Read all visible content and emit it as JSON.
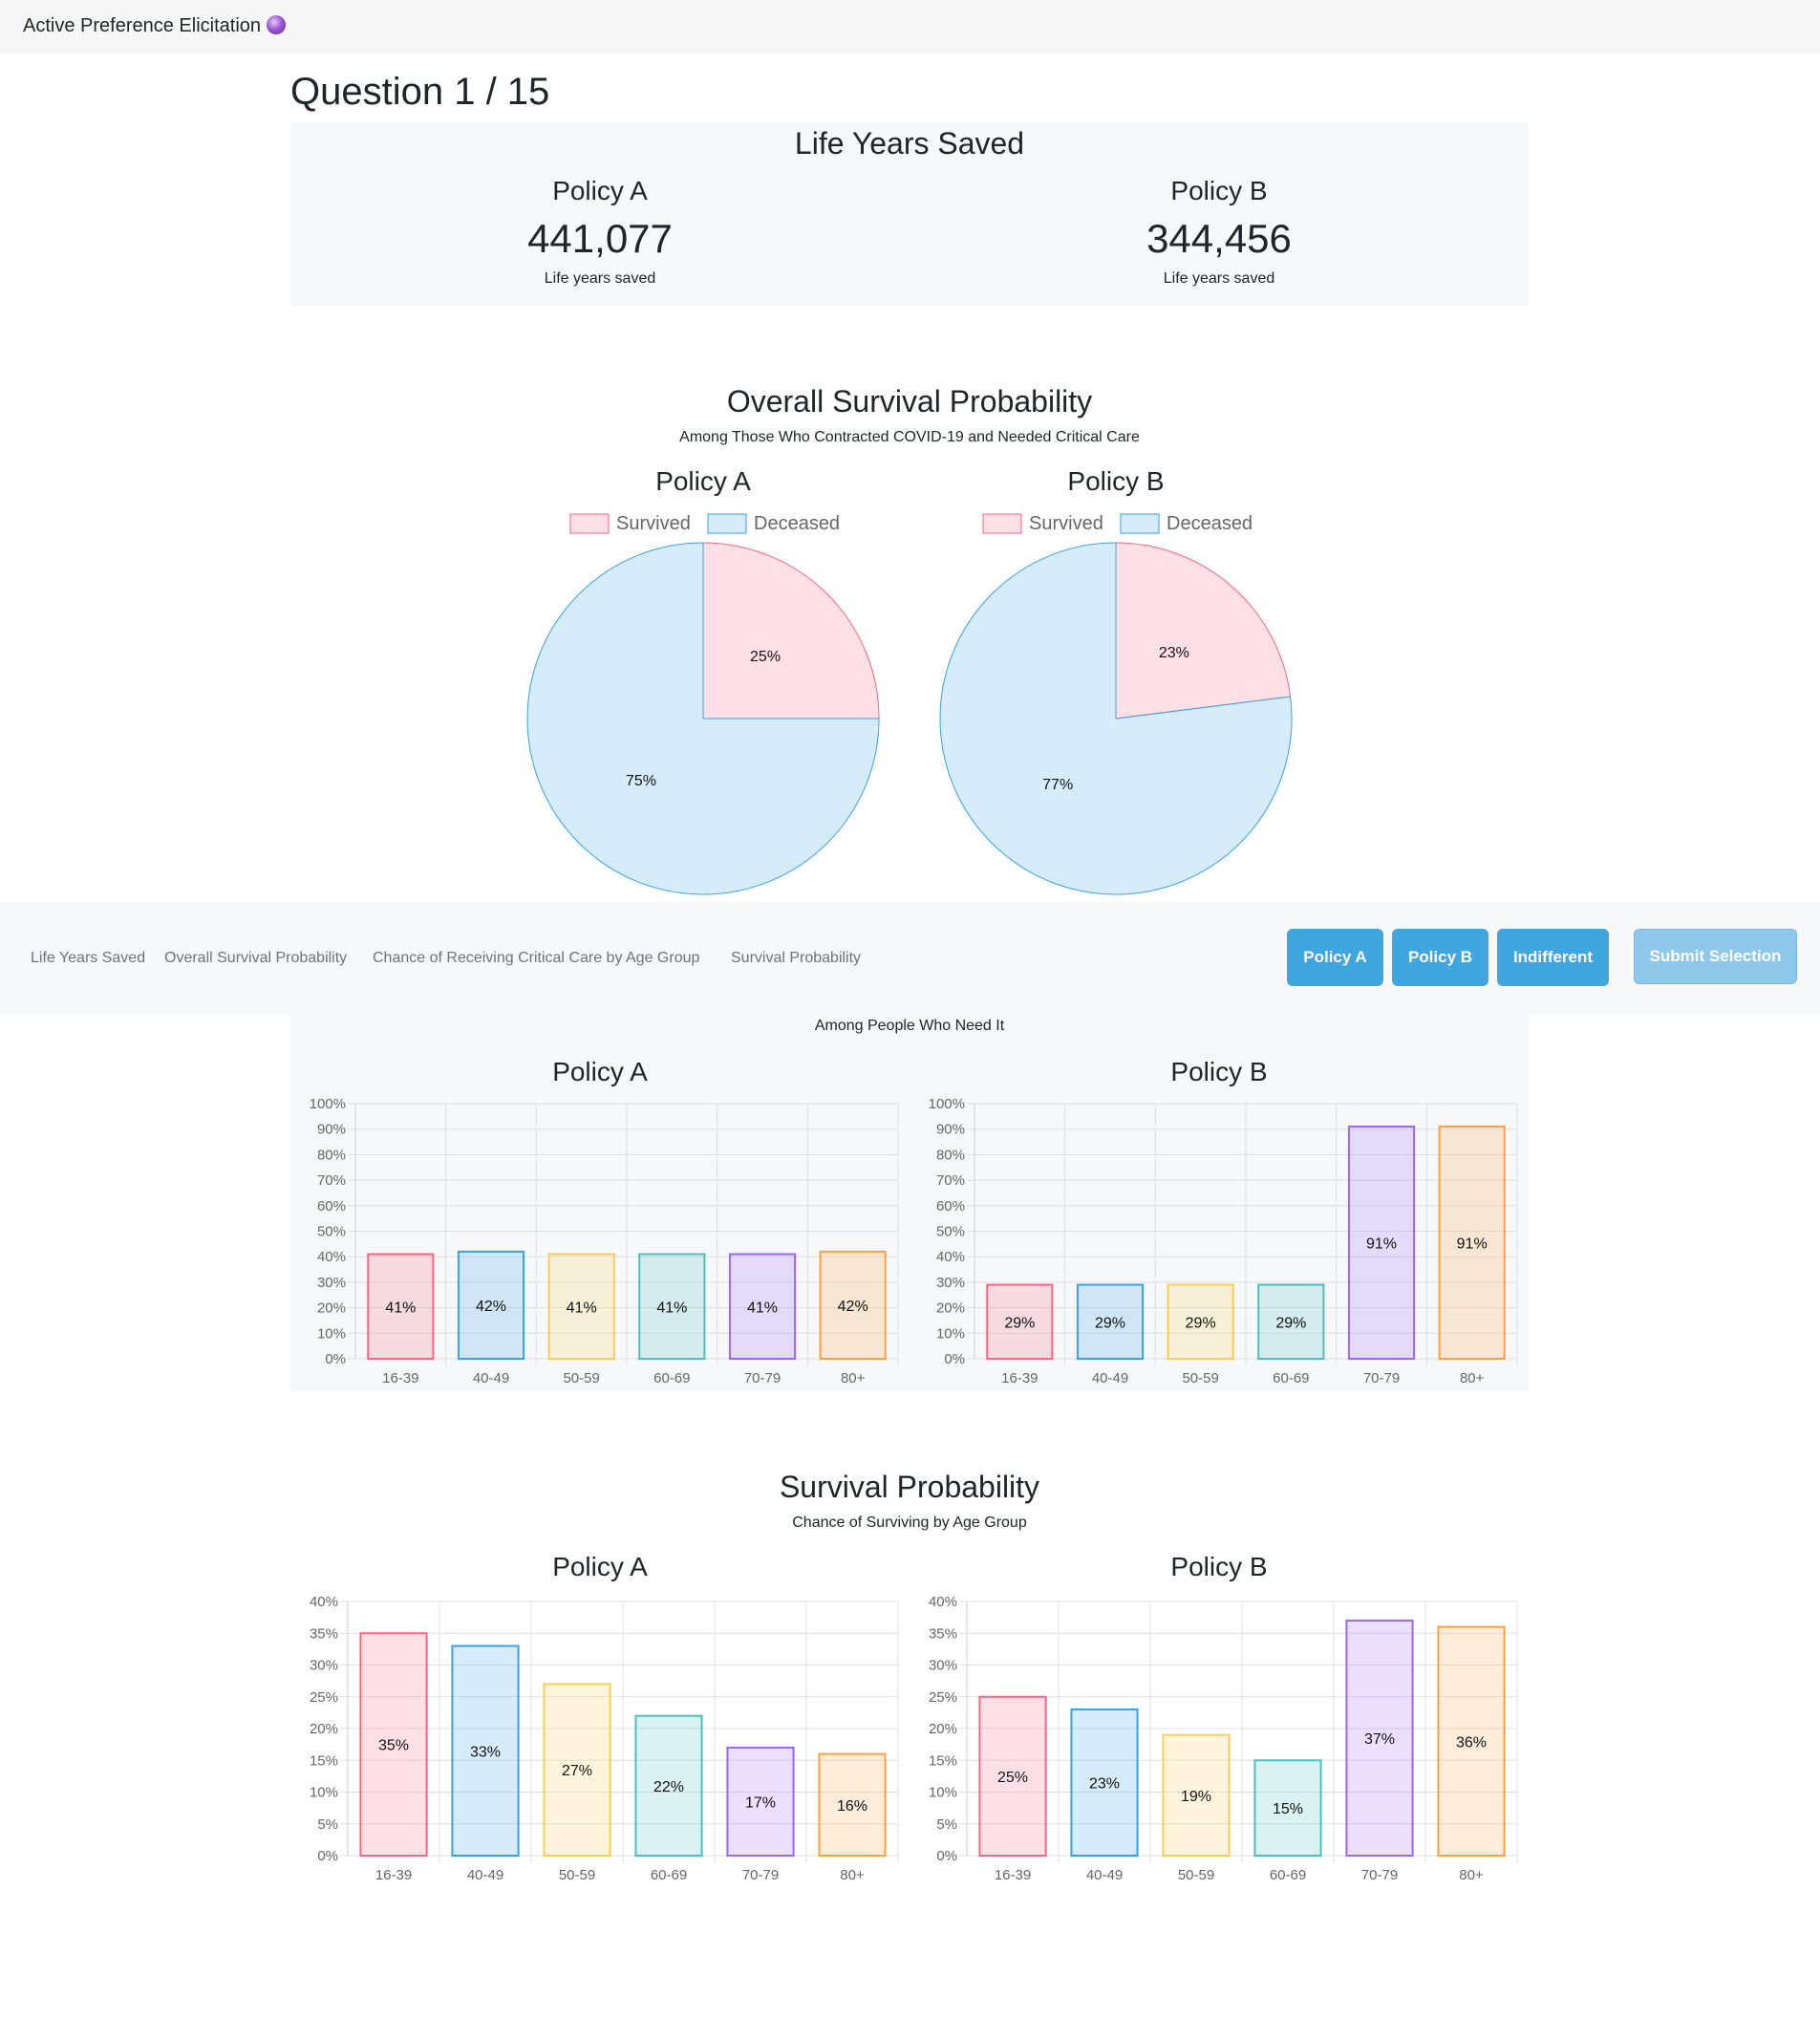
{
  "app": {
    "title": "Active Preference Elicitation",
    "icon": "crystal-ball-icon"
  },
  "question": {
    "label": "Question 1 / 15"
  },
  "life_years": {
    "title": "Life Years Saved",
    "policies": [
      {
        "name": "Policy A",
        "value": "441,077",
        "caption": "Life years saved"
      },
      {
        "name": "Policy B",
        "value": "344,456",
        "caption": "Life years saved"
      }
    ]
  },
  "overall_survival": {
    "title": "Overall Survival Probability",
    "subtitle": "Among Those Who Contracted COVID-19 and Needed Critical Care",
    "policy_a_title": "Policy A",
    "policy_b_title": "Policy B",
    "legend": [
      "Survived",
      "Deceased"
    ]
  },
  "nav": {
    "links": [
      "Life Years Saved",
      "Overall Survival Probability",
      "Chance of Receiving Critical Care by Age Group",
      "Survival Probability"
    ],
    "buttons": {
      "policy_a": "Policy A",
      "policy_b": "Policy B",
      "indifferent": "Indifferent",
      "submit": "Submit Selection"
    }
  },
  "critical_care": {
    "subtitle": "Among People Who Need It",
    "policy_a_title": "Policy A",
    "policy_b_title": "Policy B"
  },
  "survival_by_age": {
    "title": "Survival Probability",
    "subtitle": "Chance of Surviving by Age Group",
    "policy_a_title": "Policy A",
    "policy_b_title": "Policy B"
  },
  "colors": {
    "pink": "#ff6384",
    "blue": "#36a2eb",
    "yellow": "#ffcd56",
    "teal": "#4bc0c0",
    "purple": "#9966ff",
    "orange": "#ff9f40"
  },
  "chart_data": [
    {
      "id": "pieA",
      "type": "pie",
      "title": "Policy A",
      "labels": [
        "Survived",
        "Deceased"
      ],
      "values": [
        25,
        75
      ],
      "value_labels": [
        "25%",
        "75%"
      ]
    },
    {
      "id": "pieB",
      "type": "pie",
      "title": "Policy B",
      "labels": [
        "Survived",
        "Deceased"
      ],
      "values": [
        23,
        77
      ],
      "value_labels": [
        "23%",
        "77%"
      ]
    },
    {
      "id": "ccA",
      "type": "bar",
      "title": "Policy A",
      "categories": [
        "16-39",
        "40-49",
        "50-59",
        "60-69",
        "70-79",
        "80+"
      ],
      "values": [
        41,
        42,
        41,
        41,
        41,
        42
      ],
      "value_labels": [
        "41%",
        "42%",
        "41%",
        "41%",
        "41%",
        "42%"
      ],
      "ylim": [
        0,
        100
      ],
      "yticks": [
        "0%",
        "10%",
        "20%",
        "30%",
        "40%",
        "50%",
        "60%",
        "70%",
        "80%",
        "90%",
        "100%"
      ]
    },
    {
      "id": "ccB",
      "type": "bar",
      "title": "Policy B",
      "categories": [
        "16-39",
        "40-49",
        "50-59",
        "60-69",
        "70-79",
        "80+"
      ],
      "values": [
        29,
        29,
        29,
        29,
        91,
        91
      ],
      "value_labels": [
        "29%",
        "29%",
        "29%",
        "29%",
        "91%",
        "91%"
      ],
      "ylim": [
        0,
        100
      ],
      "yticks": [
        "0%",
        "10%",
        "20%",
        "30%",
        "40%",
        "50%",
        "60%",
        "70%",
        "80%",
        "90%",
        "100%"
      ]
    },
    {
      "id": "spA",
      "type": "bar",
      "title": "Policy A",
      "categories": [
        "16-39",
        "40-49",
        "50-59",
        "60-69",
        "70-79",
        "80+"
      ],
      "values": [
        35,
        33,
        27,
        22,
        17,
        16
      ],
      "value_labels": [
        "35%",
        "33%",
        "27%",
        "22%",
        "17%",
        "16%"
      ],
      "ylim": [
        0,
        40
      ],
      "yticks": [
        "0%",
        "5%",
        "10%",
        "15%",
        "20%",
        "25%",
        "30%",
        "35%",
        "40%"
      ]
    },
    {
      "id": "spB",
      "type": "bar",
      "title": "Policy B",
      "categories": [
        "16-39",
        "40-49",
        "50-59",
        "60-69",
        "70-79",
        "80+"
      ],
      "values": [
        25,
        23,
        19,
        15,
        37,
        36
      ],
      "value_labels": [
        "25%",
        "23%",
        "19%",
        "15%",
        "37%",
        "36%"
      ],
      "ylim": [
        0,
        40
      ],
      "yticks": [
        "0%",
        "5%",
        "10%",
        "15%",
        "20%",
        "25%",
        "30%",
        "35%",
        "40%"
      ]
    }
  ]
}
